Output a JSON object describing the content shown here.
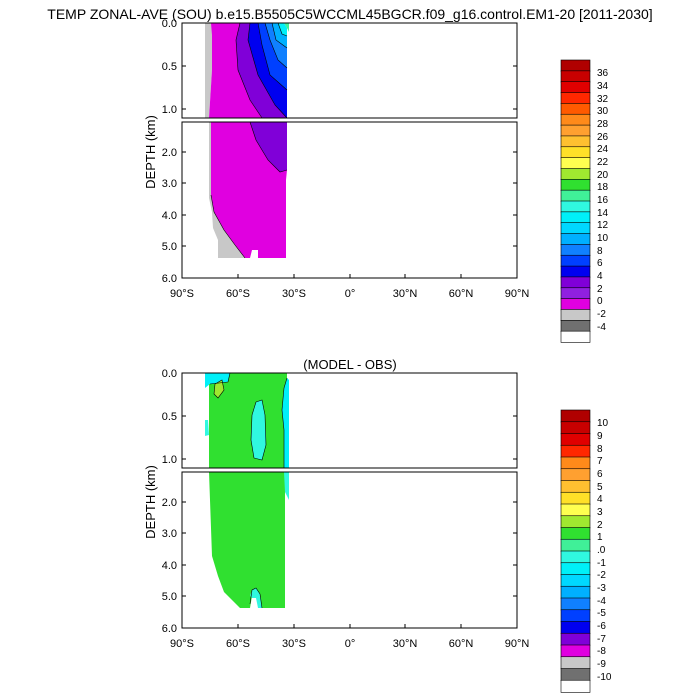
{
  "chart_data": [
    {
      "type": "heatmap",
      "title": "TEMP ZONAL-AVE (SOU) b.e15.B5505C5WCCML45BGCR.f09_g16.control.EM1-20 [2011-2030]",
      "xlabel": "",
      "ylabel": "DEPTH (km)",
      "xlim": [
        -90,
        90
      ],
      "ylim_upper": [
        0.0,
        1.1
      ],
      "ylim_lower": [
        1.1,
        6.0
      ],
      "x_ticks": [
        "90°S",
        "60°S",
        "30°S",
        "0°",
        "30°N",
        "60°N",
        "90°N"
      ],
      "y_ticks_upper": [
        "0.0",
        "0.5",
        "1.0"
      ],
      "y_ticks_lower": [
        "2.0",
        "3.0",
        "4.0",
        "5.0",
        "6.0"
      ],
      "colorbar_labels": [
        "36",
        "34",
        "32",
        "30",
        "28",
        "26",
        "24",
        "22",
        "20",
        "18",
        "16",
        "14",
        "12",
        "10",
        "8",
        "6",
        "4",
        "2",
        "0",
        "-2",
        "-4"
      ],
      "colorbar_colors": [
        "#b00000",
        "#c80000",
        "#e00000",
        "#ff2800",
        "#ff5a00",
        "#ff8a1a",
        "#ffa030",
        "#ffc030",
        "#ffe028",
        "#ffff50",
        "#a0e830",
        "#30e030",
        "#40f098",
        "#30f8e0",
        "#00f0f8",
        "#00d8ff",
        "#00b0ff",
        "#1080ff",
        "#0040ff",
        "#0000f0",
        "#8000d8",
        "#9020e0",
        "#e000e0",
        "#c8c8c8",
        "#707070",
        "#ffffff"
      ]
    },
    {
      "type": "heatmap",
      "title": "(MODEL - OBS)",
      "xlabel": "",
      "ylabel": "DEPTH (km)",
      "xlim": [
        -90,
        90
      ],
      "ylim_upper": [
        0.0,
        1.1
      ],
      "ylim_lower": [
        1.1,
        6.0
      ],
      "x_ticks": [
        "90°S",
        "60°S",
        "30°S",
        "0°",
        "30°N",
        "60°N",
        "90°N"
      ],
      "y_ticks_upper": [
        "0.0",
        "0.5",
        "1.0"
      ],
      "y_ticks_lower": [
        "2.0",
        "3.0",
        "4.0",
        "5.0",
        "6.0"
      ],
      "colorbar_labels": [
        "10",
        "9",
        "8",
        "7",
        "6",
        "5",
        "4",
        "3",
        "2",
        "1",
        ".0",
        "-1",
        "-2",
        "-3",
        "-4",
        "-5",
        "-6",
        "-7",
        "-8",
        "-9",
        "-10"
      ],
      "colorbar_colors": [
        "#b00000",
        "#c80000",
        "#e00000",
        "#ff2800",
        "#ff8a1a",
        "#ffa030",
        "#ffc030",
        "#ffe028",
        "#ffff50",
        "#a0e830",
        "#30e030",
        "#40f098",
        "#30f8e0",
        "#00f0f8",
        "#00d8ff",
        "#00b0ff",
        "#1080ff",
        "#0040ff",
        "#0000f0",
        "#8000d8",
        "#e000e0",
        "#c8c8c8",
        "#707070",
        "#ffffff"
      ]
    }
  ]
}
